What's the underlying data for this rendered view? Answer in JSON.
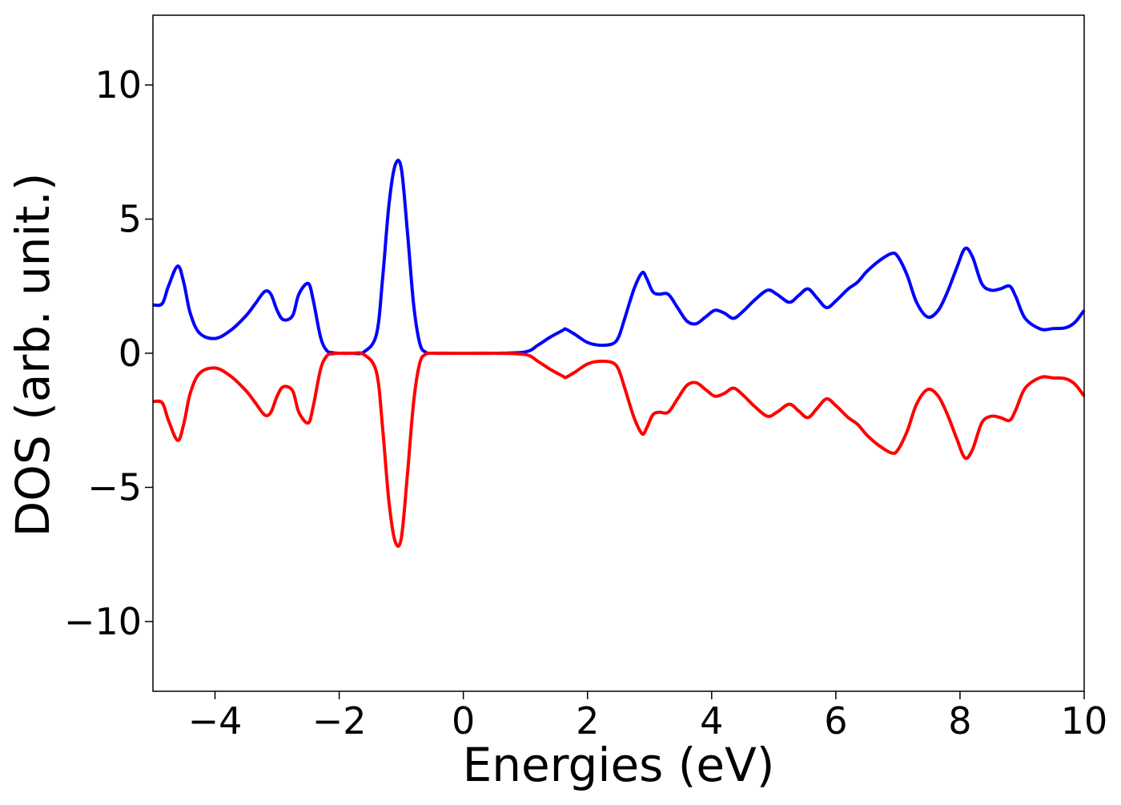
{
  "chart_data": {
    "type": "line",
    "title": "",
    "xlabel": "Energies (eV)",
    "ylabel": "DOS (arb. unit.)",
    "xlim": [
      -5,
      10
    ],
    "ylim": [
      -12.6,
      12.6
    ],
    "xticks": [
      -4,
      -2,
      0,
      2,
      4,
      6,
      8,
      10
    ],
    "yticks": [
      -10,
      -5,
      0,
      5,
      10
    ],
    "xtick_labels": [
      "−4",
      "−2",
      "0",
      "2",
      "4",
      "6",
      "8",
      "10"
    ],
    "ytick_labels": [
      "−10",
      "−5",
      "0",
      "5",
      "10"
    ],
    "grid": false,
    "legend": false,
    "series": [
      {
        "color": "#0000ff",
        "x": [
          -5.0,
          -4.85,
          -4.75,
          -4.6,
          -4.5,
          -4.4,
          -4.25,
          -4.0,
          -3.75,
          -3.5,
          -3.35,
          -3.2,
          -3.1,
          -3.0,
          -2.9,
          -2.75,
          -2.65,
          -2.5,
          -2.42,
          -2.3,
          -2.2,
          -2.1,
          -2.0,
          -1.8,
          -1.6,
          -1.4,
          -1.3,
          -1.2,
          -1.1,
          -1.0,
          -0.9,
          -0.8,
          -0.7,
          -0.6,
          -0.5,
          0.0,
          0.5,
          1.0,
          1.2,
          1.4,
          1.6,
          1.65,
          1.8,
          2.0,
          2.2,
          2.4,
          2.5,
          2.6,
          2.75,
          2.88,
          2.95,
          3.05,
          3.15,
          3.3,
          3.45,
          3.6,
          3.75,
          3.9,
          4.05,
          4.2,
          4.35,
          4.5,
          4.7,
          4.9,
          5.05,
          5.25,
          5.4,
          5.55,
          5.7,
          5.85,
          6.0,
          6.2,
          6.35,
          6.5,
          6.7,
          6.9,
          7.0,
          7.15,
          7.3,
          7.48,
          7.65,
          7.8,
          7.95,
          8.08,
          8.2,
          8.35,
          8.5,
          8.65,
          8.8,
          8.9,
          9.05,
          9.3,
          9.5,
          9.7,
          9.85,
          10.0
        ],
        "y": [
          1.8,
          1.85,
          2.5,
          3.25,
          2.6,
          1.5,
          0.75,
          0.55,
          0.85,
          1.4,
          1.85,
          2.3,
          2.2,
          1.6,
          1.25,
          1.4,
          2.2,
          2.6,
          2.0,
          0.6,
          0.1,
          0.02,
          0.0,
          0.0,
          0.05,
          0.7,
          2.8,
          5.5,
          7.0,
          6.9,
          4.5,
          1.8,
          0.35,
          0.03,
          0.0,
          0.0,
          0.0,
          0.05,
          0.3,
          0.6,
          0.85,
          0.9,
          0.7,
          0.4,
          0.3,
          0.35,
          0.6,
          1.3,
          2.4,
          3.0,
          2.8,
          2.3,
          2.2,
          2.2,
          1.7,
          1.2,
          1.1,
          1.35,
          1.6,
          1.5,
          1.3,
          1.55,
          2.0,
          2.35,
          2.2,
          1.9,
          2.15,
          2.4,
          2.05,
          1.7,
          1.95,
          2.4,
          2.65,
          3.05,
          3.45,
          3.72,
          3.6,
          2.9,
          1.9,
          1.35,
          1.6,
          2.3,
          3.2,
          3.9,
          3.6,
          2.6,
          2.35,
          2.4,
          2.5,
          2.1,
          1.3,
          0.9,
          0.92,
          0.95,
          1.15,
          1.6
        ]
      },
      {
        "color": "#ff0000",
        "x": [
          -5.0,
          -4.85,
          -4.75,
          -4.6,
          -4.5,
          -4.4,
          -4.25,
          -4.0,
          -3.75,
          -3.5,
          -3.35,
          -3.2,
          -3.1,
          -3.0,
          -2.9,
          -2.75,
          -2.65,
          -2.5,
          -2.42,
          -2.3,
          -2.2,
          -2.1,
          -2.0,
          -1.8,
          -1.6,
          -1.4,
          -1.3,
          -1.2,
          -1.1,
          -1.0,
          -0.9,
          -0.8,
          -0.7,
          -0.6,
          -0.5,
          0.0,
          0.5,
          1.0,
          1.2,
          1.4,
          1.6,
          1.65,
          1.8,
          2.0,
          2.2,
          2.4,
          2.5,
          2.6,
          2.75,
          2.88,
          2.95,
          3.05,
          3.15,
          3.3,
          3.45,
          3.6,
          3.75,
          3.9,
          4.05,
          4.2,
          4.35,
          4.5,
          4.7,
          4.9,
          5.05,
          5.25,
          5.4,
          5.55,
          5.7,
          5.85,
          6.0,
          6.2,
          6.35,
          6.5,
          6.7,
          6.9,
          7.0,
          7.15,
          7.3,
          7.48,
          7.65,
          7.8,
          7.95,
          8.08,
          8.2,
          8.35,
          8.5,
          8.65,
          8.8,
          8.9,
          9.05,
          9.3,
          9.5,
          9.7,
          9.85,
          10.0
        ],
        "y": [
          -1.8,
          -1.85,
          -2.5,
          -3.25,
          -2.6,
          -1.5,
          -0.75,
          -0.55,
          -0.85,
          -1.4,
          -1.85,
          -2.3,
          -2.2,
          -1.6,
          -1.25,
          -1.4,
          -2.2,
          -2.6,
          -2.0,
          -0.6,
          -0.1,
          -0.02,
          0.0,
          0.0,
          -0.05,
          -0.7,
          -2.8,
          -5.5,
          -7.0,
          -6.9,
          -4.5,
          -1.8,
          -0.35,
          -0.03,
          0.0,
          0.0,
          0.0,
          -0.05,
          -0.3,
          -0.6,
          -0.85,
          -0.9,
          -0.7,
          -0.4,
          -0.3,
          -0.35,
          -0.6,
          -1.3,
          -2.4,
          -3.0,
          -2.8,
          -2.3,
          -2.2,
          -2.2,
          -1.7,
          -1.2,
          -1.1,
          -1.35,
          -1.6,
          -1.5,
          -1.3,
          -1.55,
          -2.0,
          -2.35,
          -2.2,
          -1.9,
          -2.15,
          -2.4,
          -2.05,
          -1.7,
          -1.95,
          -2.4,
          -2.65,
          -3.05,
          -3.45,
          -3.72,
          -3.6,
          -2.9,
          -1.9,
          -1.35,
          -1.6,
          -2.3,
          -3.2,
          -3.9,
          -3.6,
          -2.6,
          -2.35,
          -2.4,
          -2.5,
          -2.1,
          -1.3,
          -0.9,
          -0.92,
          -0.95,
          -1.15,
          -1.6
        ]
      }
    ]
  }
}
